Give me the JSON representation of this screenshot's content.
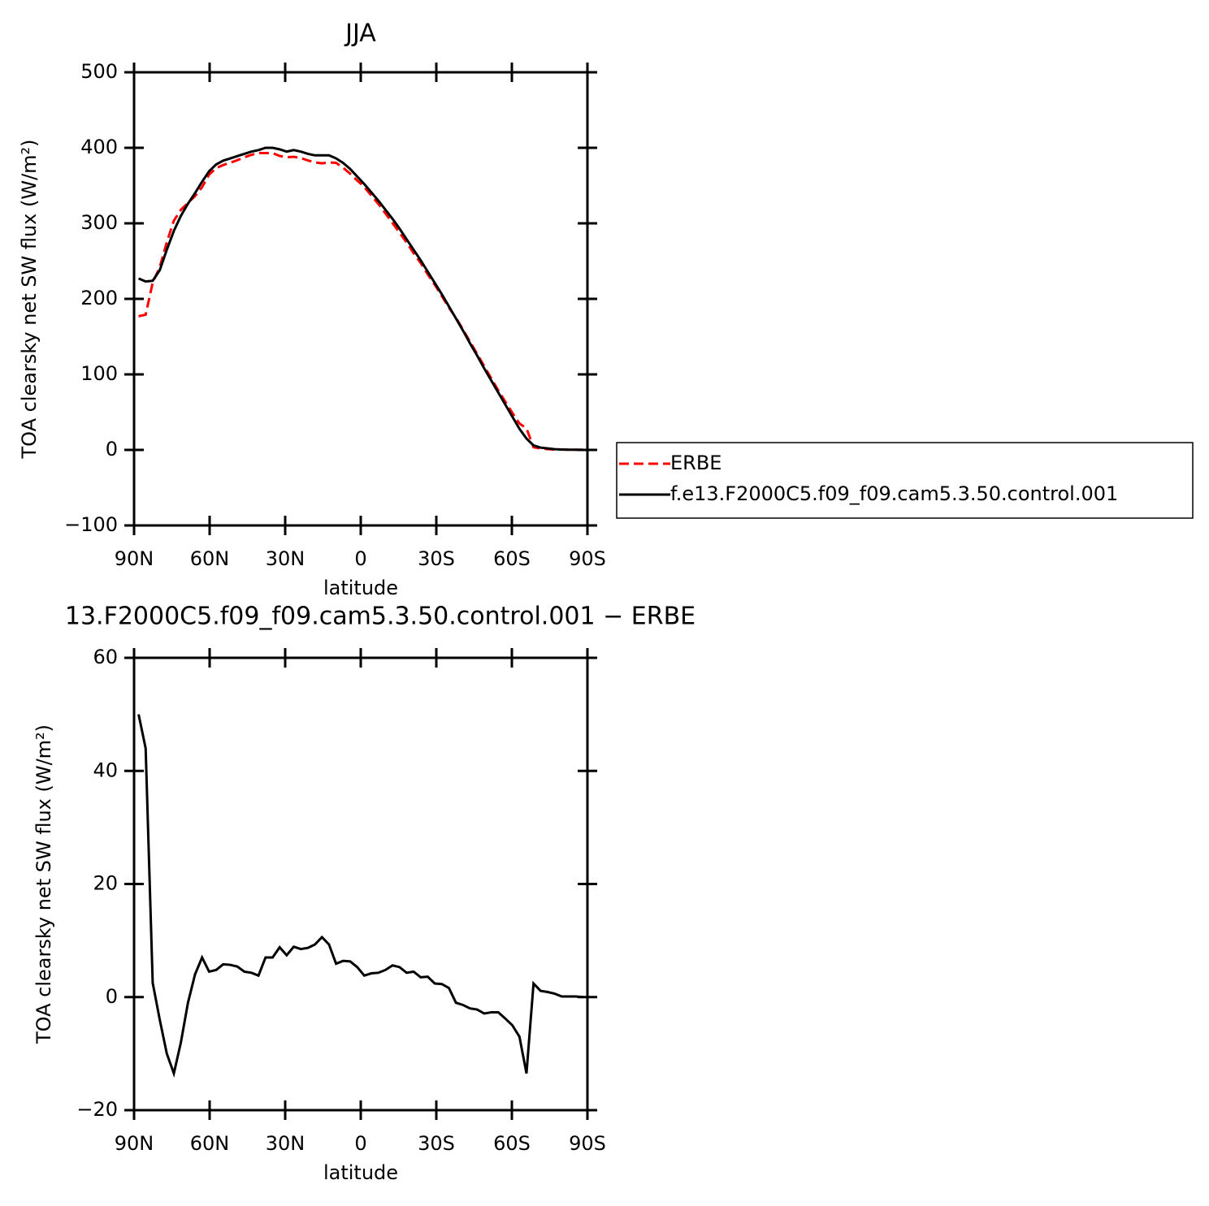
{
  "chart_data": [
    {
      "type": "line",
      "title": "JJA",
      "xlabel": "latitude",
      "ylabel": "TOA clearsky net SW flux (W/m²)",
      "x": [
        88.2,
        85.4,
        82.6,
        79.8,
        77,
        74.2,
        71.4,
        68.6,
        65.8,
        63,
        60.2,
        57.4,
        54.6,
        51.8,
        49,
        46.2,
        43.4,
        40.6,
        37.8,
        35,
        32.2,
        29.4,
        26.6,
        23.8,
        21,
        18.2,
        15.4,
        12.6,
        9.8,
        7,
        4.2,
        1.4,
        -1.4,
        -4.2,
        -7,
        -9.8,
        -12.6,
        -15.4,
        -18.2,
        -21,
        -23.8,
        -26.6,
        -29.4,
        -32.2,
        -35,
        -37.8,
        -40.6,
        -43.4,
        -46.2,
        -49,
        -51.8,
        -54.6,
        -57.4,
        -60.2,
        -63,
        -65.8,
        -68.6,
        -71.4,
        -74.2,
        -77,
        -79.8,
        -82.6,
        -85.4,
        -88.2
      ],
      "series": [
        {
          "name": "ERBE",
          "color": "#ff0000",
          "line_style": "dashed",
          "values": [
            177,
            179,
            221.5,
            242,
            275,
            303.5,
            318,
            327,
            336,
            348,
            364.5,
            373.2,
            377.2,
            380.3,
            383.6,
            387.5,
            390.7,
            393.2,
            393,
            393,
            389.2,
            387.6,
            388.1,
            386.5,
            383.3,
            380.7,
            379.4,
            380.7,
            380.1,
            373.6,
            365.7,
            356.7,
            348.2,
            336.8,
            325.7,
            313.2,
            300.4,
            287.7,
            274.7,
            260.5,
            247.5,
            232.4,
            218.6,
            203.7,
            188.4,
            175,
            159.4,
            143,
            127.2,
            110.9,
            94.7,
            78.7,
            63.8,
            49,
            35,
            28.5,
            3.6,
            1.9,
            1.1,
            0.4,
            0.4,
            0.2,
            0.1,
            0.1
          ]
        },
        {
          "name": "f.e13.F2000C5.f09_f09.cam5.3.50.control.001",
          "color": "#000000",
          "line_style": "solid",
          "values": [
            227,
            223,
            224,
            238,
            265,
            290,
            310,
            326,
            340,
            355,
            369,
            378,
            383,
            386,
            389,
            392,
            395,
            397,
            400,
            400,
            398,
            395,
            397,
            395,
            392,
            390,
            390,
            390,
            386,
            380,
            372,
            362,
            352,
            341,
            330,
            318,
            306,
            293,
            279,
            265,
            251,
            236,
            221,
            206,
            190,
            174,
            158,
            141,
            125,
            108,
            92,
            76,
            60,
            44,
            28,
            15,
            6,
            3,
            2,
            1,
            0.5,
            0.3,
            0.2,
            0.1
          ]
        }
      ],
      "xlim": [
        90,
        -90
      ],
      "xticks": [
        {
          "value": 90,
          "label": "90N"
        },
        {
          "value": 60,
          "label": "60N"
        },
        {
          "value": 30,
          "label": "30N"
        },
        0,
        {
          "value": -30,
          "label": "30S"
        },
        {
          "value": -60,
          "label": "60S"
        },
        {
          "value": -90,
          "label": "90S"
        }
      ],
      "ylim": [
        -100,
        500
      ],
      "yticks": [
        {
          "value": -100,
          "label": "−100"
        },
        0,
        100,
        200,
        300,
        400,
        500
      ],
      "legend": "right"
    },
    {
      "type": "line",
      "title": "13.F2000C5.f09_f09.cam5.3.50.control.001 − ERBE",
      "xlabel": "latitude",
      "ylabel": "TOA clearsky net SW flux (W/m²)",
      "x": [
        88.2,
        85.4,
        82.6,
        79.8,
        77,
        74.2,
        71.4,
        68.6,
        65.8,
        63,
        60.2,
        57.4,
        54.6,
        51.8,
        49,
        46.2,
        43.4,
        40.6,
        37.8,
        35,
        32.2,
        29.4,
        26.6,
        23.8,
        21,
        18.2,
        15.4,
        12.6,
        9.8,
        7,
        4.2,
        1.4,
        -1.4,
        -4.2,
        -7,
        -9.8,
        -12.6,
        -15.4,
        -18.2,
        -21,
        -23.8,
        -26.6,
        -29.4,
        -32.2,
        -35,
        -37.8,
        -40.6,
        -43.4,
        -46.2,
        -49,
        -51.8,
        -54.6,
        -57.4,
        -60.2,
        -63,
        -65.8,
        -68.6,
        -71.4,
        -74.2,
        -77,
        -79.8,
        -82.6,
        -85.4,
        -88.2
      ],
      "series": [
        {
          "color": "#000000",
          "line_style": "solid",
          "values": [
            50,
            44,
            2.5,
            -4,
            -10,
            -13.5,
            -8,
            -1,
            4,
            7,
            4.5,
            4.8,
            5.8,
            5.7,
            5.4,
            4.5,
            4.3,
            3.8,
            7,
            7,
            8.8,
            7.4,
            8.9,
            8.5,
            8.7,
            9.3,
            10.6,
            9.3,
            5.9,
            6.4,
            6.3,
            5.3,
            3.8,
            4.2,
            4.3,
            4.8,
            5.6,
            5.3,
            4.3,
            4.5,
            3.5,
            3.6,
            2.4,
            2.3,
            1.6,
            -1,
            -1.4,
            -2,
            -2.2,
            -2.9,
            -2.7,
            -2.7,
            -3.8,
            -5,
            -7,
            -13.5,
            2.4,
            1.1,
            0.9,
            0.6,
            0.1,
            0.1,
            0.1,
            0
          ]
        }
      ],
      "xlim": [
        90,
        -90
      ],
      "xticks": [
        {
          "value": 90,
          "label": "90N"
        },
        {
          "value": 60,
          "label": "60N"
        },
        {
          "value": 30,
          "label": "30N"
        },
        0,
        {
          "value": -30,
          "label": "30S"
        },
        {
          "value": -60,
          "label": "60S"
        },
        {
          "value": -90,
          "label": "90S"
        }
      ],
      "ylim": [
        -20,
        60
      ],
      "yticks": [
        {
          "value": -20,
          "label": "−20"
        },
        0,
        20,
        40,
        60
      ]
    }
  ]
}
